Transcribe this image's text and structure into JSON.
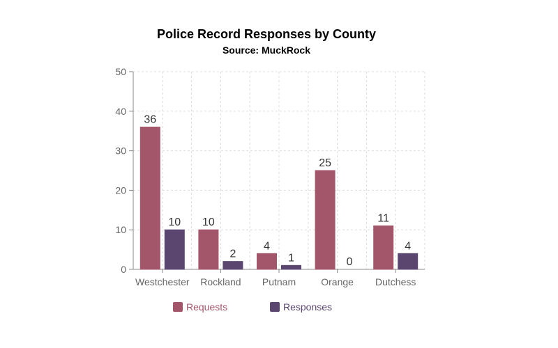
{
  "chart_data": {
    "type": "bar",
    "title": "Police Record Responses by County",
    "subtitle": "Source: MuckRock",
    "categories": [
      "Westchester",
      "Rockland",
      "Putnam",
      "Orange",
      "Dutchess"
    ],
    "series": [
      {
        "name": "Requests",
        "values": [
          36,
          10,
          4,
          25,
          11
        ],
        "color": "#a3566a"
      },
      {
        "name": "Responses",
        "values": [
          10,
          2,
          1,
          0,
          4
        ],
        "color": "#5b4670"
      }
    ],
    "ylim": [
      0,
      50
    ],
    "yticks": [
      0,
      10,
      20,
      30,
      40,
      50
    ],
    "grid": true,
    "legend_position": "bottom"
  }
}
